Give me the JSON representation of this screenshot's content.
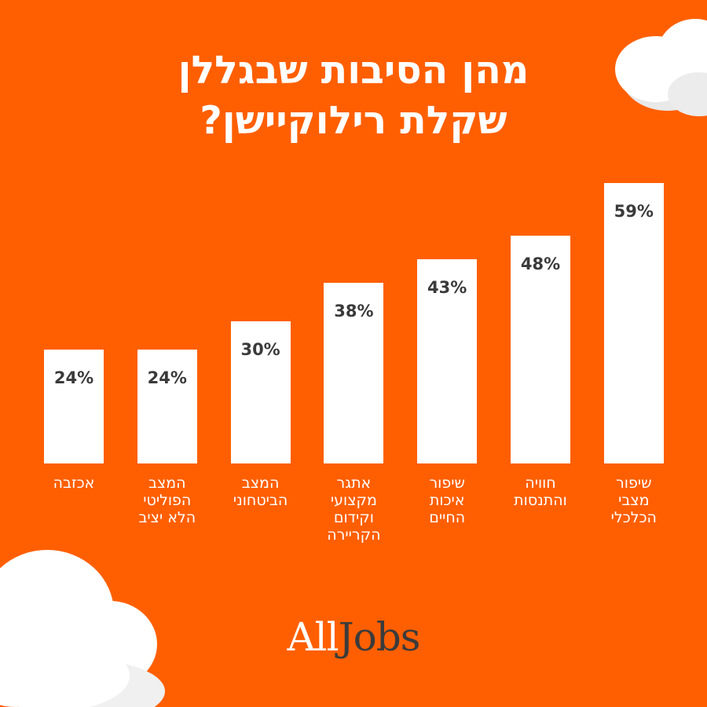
{
  "header": {
    "title_lines": [
      "מהן הסיבות שבגללן",
      "שקלת רילוקיישן?"
    ]
  },
  "logo": {
    "part1": "All",
    "part2": "Jobs"
  },
  "colors": {
    "background": "#ff5f00",
    "bar": "#ffffff",
    "value_text": "#3a3a3a",
    "label_text": "#ffffff"
  },
  "chart_data": {
    "type": "bar",
    "title": "מהן הסיבות שבגללן שקלת רילוקיישן?",
    "unit": "%",
    "categories": [
      [
        "אכזבה"
      ],
      [
        "המצב",
        "הפוליטי",
        "הלא יציב"
      ],
      [
        "המצב",
        "הביטחוני"
      ],
      [
        "אתגר",
        "מקצועי",
        "וקידום",
        "הקריירה"
      ],
      [
        "שיפור",
        "איכות",
        "החיים"
      ],
      [
        "חוויה",
        "והתנסות"
      ],
      [
        "שיפור",
        "מצבי",
        "הכלכלי"
      ]
    ],
    "values": [
      24,
      24,
      30,
      38,
      43,
      48,
      59
    ],
    "value_labels": [
      "24%",
      "24%",
      "30%",
      "38%",
      "43%",
      "48%",
      "59%"
    ],
    "ylim": [
      0,
      60
    ],
    "grid": false,
    "legend": "none"
  }
}
